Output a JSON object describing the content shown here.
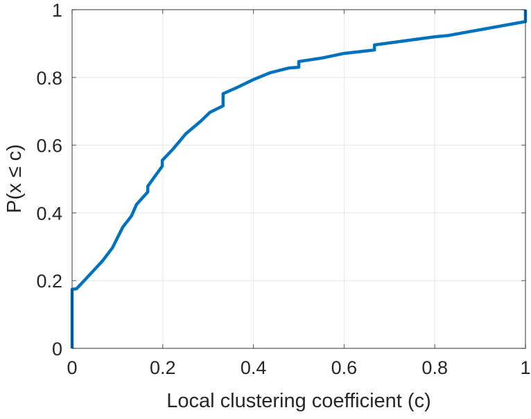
{
  "chart_data": {
    "type": "line",
    "title": "",
    "xlabel": "Local clustering coefficient (c)",
    "ylabel": "P(x ≤ c)",
    "xlim": [
      0,
      1
    ],
    "ylim": [
      0,
      1
    ],
    "xticks": [
      0,
      0.2,
      0.4,
      0.6,
      0.8,
      1
    ],
    "xtick_labels": [
      "0",
      "0.2",
      "0.4",
      "0.6",
      "0.8",
      "1"
    ],
    "yticks": [
      0,
      0.2,
      0.4,
      0.6,
      0.8,
      1
    ],
    "ytick_labels": [
      "0",
      "0.2",
      "0.4",
      "0.6",
      "0.8",
      "1"
    ],
    "grid": true,
    "series": [
      {
        "name": "CDF",
        "color": "#0072BD",
        "x": [
          0,
          0,
          0.01,
          0.044,
          0.067,
          0.089,
          0.112,
          0.131,
          0.142,
          0.167,
          0.167,
          0.199,
          0.199,
          0.223,
          0.251,
          0.284,
          0.304,
          0.333,
          0.333,
          0.365,
          0.399,
          0.437,
          0.479,
          0.5,
          0.5,
          0.55,
          0.6,
          0.667,
          0.667,
          0.8,
          0.83,
          1,
          1
        ],
        "y": [
          0,
          0.174,
          0.176,
          0.225,
          0.258,
          0.297,
          0.358,
          0.391,
          0.425,
          0.462,
          0.479,
          0.538,
          0.555,
          0.589,
          0.634,
          0.671,
          0.697,
          0.716,
          0.752,
          0.771,
          0.793,
          0.814,
          0.828,
          0.83,
          0.847,
          0.857,
          0.871,
          0.881,
          0.896,
          0.92,
          0.924,
          0.965,
          1
        ]
      }
    ]
  }
}
